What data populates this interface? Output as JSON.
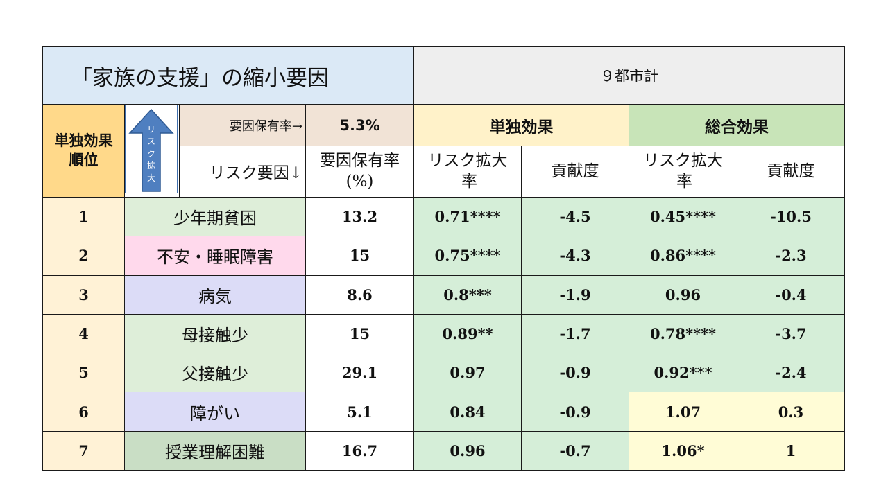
{
  "title": "「家族の支援」の縮小要因",
  "region": "９都市計",
  "rank_header": [
    "単独効果",
    "順位"
  ],
  "arrow_label": [
    "リ",
    "ス",
    "ク",
    "拡",
    "大"
  ],
  "rate_label_top": "要因保有率→",
  "rate_label_bottom": "リスク要因↓",
  "overall_rate": "5.3%",
  "rate_col_header": [
    "要因保有率",
    "(%)"
  ],
  "solo_header": "単独効果",
  "total_header": "総合効果",
  "risk_header": [
    "リスク拡大",
    "率"
  ],
  "contrib_header": "貢献度",
  "colors": {
    "title_bg": "#dbe9f6",
    "rank_bg": "#fff2d6",
    "green": "#d5eed8",
    "yellow": "#fffcd6",
    "factor_green": "#deeed9",
    "factor_pink": "#ffd9ec",
    "factor_lavender": "#dcdcf7",
    "factor_sage": "#c9dec5"
  },
  "rows": [
    {
      "rank": "1",
      "factor": "少年期貧困",
      "rate": "13.2",
      "solo_risk": "0.71****",
      "solo_contrib": "-4.5",
      "total_risk": "0.45****",
      "total_contrib": "-10.5",
      "factor_color": "#deeed9",
      "total_color": "#d5eed8"
    },
    {
      "rank": "2",
      "factor": "不安・睡眠障害",
      "rate": "15",
      "solo_risk": "0.75****",
      "solo_contrib": "-4.3",
      "total_risk": "0.86****",
      "total_contrib": "-2.3",
      "factor_color": "#ffd9ec",
      "total_color": "#d5eed8"
    },
    {
      "rank": "3",
      "factor": "病気",
      "rate": "8.6",
      "solo_risk": "0.8***",
      "solo_contrib": "-1.9",
      "total_risk": "0.96",
      "total_contrib": "-0.4",
      "factor_color": "#dcdcf7",
      "total_color": "#d5eed8"
    },
    {
      "rank": "4",
      "factor": "母接触少",
      "rate": "15",
      "solo_risk": "0.89**",
      "solo_contrib": "-1.7",
      "total_risk": "0.78****",
      "total_contrib": "-3.7",
      "factor_color": "#deeed9",
      "total_color": "#d5eed8"
    },
    {
      "rank": "5",
      "factor": "父接触少",
      "rate": "29.1",
      "solo_risk": "0.97",
      "solo_contrib": "-0.9",
      "total_risk": "0.92***",
      "total_contrib": "-2.4",
      "factor_color": "#deeed9",
      "total_color": "#d5eed8"
    },
    {
      "rank": "6",
      "factor": "障がい",
      "rate": "5.1",
      "solo_risk": "0.84",
      "solo_contrib": "-0.9",
      "total_risk": "1.07",
      "total_contrib": "0.3",
      "factor_color": "#dcdcf7",
      "total_color": "#fffcd6"
    },
    {
      "rank": "7",
      "factor": "授業理解困難",
      "rate": "16.7",
      "solo_risk": "0.96",
      "solo_contrib": "-0.7",
      "total_risk": "1.06*",
      "total_contrib": "1",
      "factor_color": "#c9dec5",
      "total_color": "#fffcd6"
    }
  ]
}
